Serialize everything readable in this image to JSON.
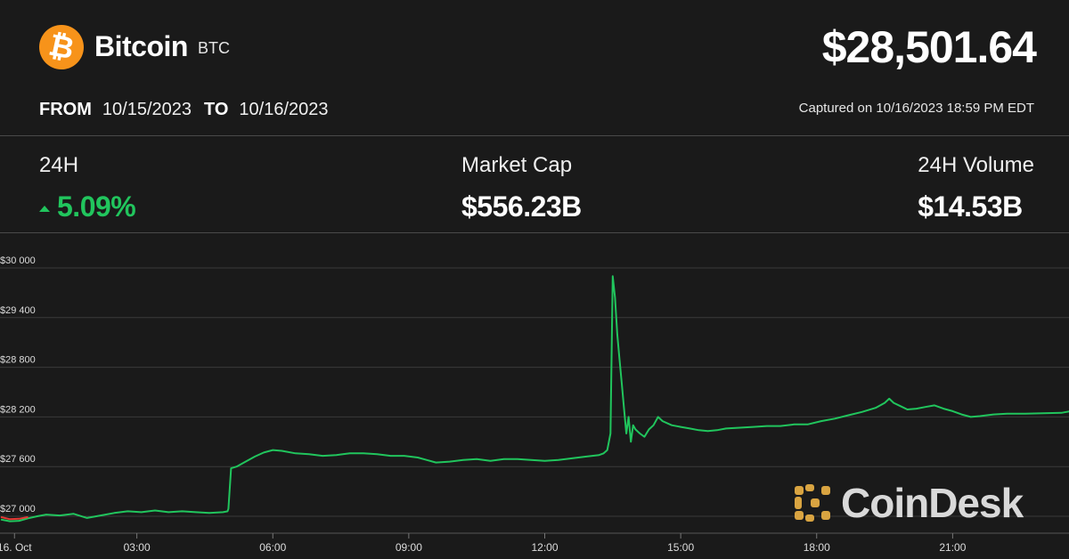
{
  "header": {
    "coin_name": "Bitcoin",
    "coin_symbol": "BTC",
    "logo_glyph": "₿",
    "price": "$28,501.64",
    "from_label": "FROM",
    "from_date": "10/15/2023",
    "to_label": "TO",
    "to_date": "10/16/2023",
    "captured": "Captured on 10/16/2023 18:59 PM EDT"
  },
  "stats": {
    "change_label": "24H",
    "change_value": "5.09%",
    "market_cap_label": "Market Cap",
    "market_cap_value": "$556.23B",
    "volume_label": "24H Volume",
    "volume_value": "$14.53B"
  },
  "watermark": {
    "text": "CoinDesk"
  },
  "colors": {
    "background": "#1a1a1a",
    "up": "#21c55d",
    "down": "#e53935",
    "brand": "#f7931a",
    "watermark": "#d9a441",
    "grid": "#3a3a3a"
  },
  "chart_data": {
    "type": "line",
    "title": "",
    "xlabel": "",
    "ylabel": "",
    "ylim": [
      26900,
      30200
    ],
    "xlim": [
      0,
      23.7
    ],
    "yticks": [
      {
        "value": 27000,
        "label": "$27 000"
      },
      {
        "value": 27600,
        "label": "$27 600"
      },
      {
        "value": 28200,
        "label": "$28 200"
      },
      {
        "value": 28800,
        "label": "$28 800"
      },
      {
        "value": 29400,
        "label": "$29 400"
      },
      {
        "value": 30000,
        "label": "$30 000"
      }
    ],
    "xticks": [
      {
        "value": 0.3,
        "label": "16. Oct"
      },
      {
        "value": 3,
        "label": "03:00"
      },
      {
        "value": 6,
        "label": "06:00"
      },
      {
        "value": 9,
        "label": "09:00"
      },
      {
        "value": 12,
        "label": "12:00"
      },
      {
        "value": 15,
        "label": "15:00"
      },
      {
        "value": 18,
        "label": "18:00"
      },
      {
        "value": 21,
        "label": "21:00"
      }
    ],
    "grid": true,
    "series": [
      {
        "color": "#21c55d",
        "x_unit": "hours since 16 Oct 00:00",
        "points": [
          [
            0.0,
            26960
          ],
          [
            0.2,
            26940
          ],
          [
            0.4,
            26945
          ],
          [
            0.6,
            26975
          ],
          [
            0.8,
            27000
          ],
          [
            1.0,
            27020
          ],
          [
            1.3,
            27010
          ],
          [
            1.6,
            27030
          ],
          [
            1.9,
            26980
          ],
          [
            2.2,
            27010
          ],
          [
            2.5,
            27040
          ],
          [
            2.8,
            27060
          ],
          [
            3.1,
            27050
          ],
          [
            3.4,
            27070
          ],
          [
            3.7,
            27050
          ],
          [
            4.0,
            27060
          ],
          [
            4.3,
            27050
          ],
          [
            4.6,
            27040
          ],
          [
            4.9,
            27050
          ],
          [
            5.0,
            27060
          ],
          [
            5.02,
            27090
          ],
          [
            5.08,
            27580
          ],
          [
            5.2,
            27600
          ],
          [
            5.4,
            27660
          ],
          [
            5.6,
            27720
          ],
          [
            5.8,
            27770
          ],
          [
            6.0,
            27800
          ],
          [
            6.2,
            27790
          ],
          [
            6.5,
            27760
          ],
          [
            6.8,
            27750
          ],
          [
            7.1,
            27730
          ],
          [
            7.4,
            27740
          ],
          [
            7.7,
            27760
          ],
          [
            8.0,
            27760
          ],
          [
            8.3,
            27750
          ],
          [
            8.6,
            27730
          ],
          [
            8.9,
            27730
          ],
          [
            9.2,
            27710
          ],
          [
            9.4,
            27680
          ],
          [
            9.6,
            27650
          ],
          [
            9.9,
            27660
          ],
          [
            10.2,
            27680
          ],
          [
            10.5,
            27690
          ],
          [
            10.8,
            27670
          ],
          [
            11.1,
            27690
          ],
          [
            11.4,
            27690
          ],
          [
            11.7,
            27680
          ],
          [
            12.0,
            27670
          ],
          [
            12.3,
            27680
          ],
          [
            12.6,
            27700
          ],
          [
            12.9,
            27720
          ],
          [
            13.2,
            27740
          ],
          [
            13.3,
            27760
          ],
          [
            13.38,
            27800
          ],
          [
            13.45,
            28000
          ],
          [
            13.5,
            29900
          ],
          [
            13.55,
            29640
          ],
          [
            13.6,
            29200
          ],
          [
            13.65,
            28900
          ],
          [
            13.7,
            28600
          ],
          [
            13.75,
            28300
          ],
          [
            13.8,
            28000
          ],
          [
            13.85,
            28200
          ],
          [
            13.9,
            27900
          ],
          [
            13.95,
            28100
          ],
          [
            14.0,
            28050
          ],
          [
            14.1,
            28000
          ],
          [
            14.2,
            27960
          ],
          [
            14.3,
            28050
          ],
          [
            14.4,
            28100
          ],
          [
            14.5,
            28200
          ],
          [
            14.6,
            28150
          ],
          [
            14.8,
            28100
          ],
          [
            15.0,
            28080
          ],
          [
            15.2,
            28060
          ],
          [
            15.4,
            28040
          ],
          [
            15.6,
            28030
          ],
          [
            15.8,
            28040
          ],
          [
            16.0,
            28060
          ],
          [
            16.3,
            28070
          ],
          [
            16.6,
            28080
          ],
          [
            16.9,
            28090
          ],
          [
            17.2,
            28090
          ],
          [
            17.5,
            28110
          ],
          [
            17.8,
            28110
          ],
          [
            18.1,
            28150
          ],
          [
            18.4,
            28180
          ],
          [
            18.7,
            28220
          ],
          [
            19.0,
            28260
          ],
          [
            19.3,
            28310
          ],
          [
            19.5,
            28370
          ],
          [
            19.6,
            28420
          ],
          [
            19.7,
            28370
          ],
          [
            19.85,
            28330
          ],
          [
            20.0,
            28290
          ],
          [
            20.2,
            28300
          ],
          [
            20.4,
            28320
          ],
          [
            20.6,
            28340
          ],
          [
            20.8,
            28300
          ],
          [
            21.0,
            28270
          ],
          [
            21.2,
            28230
          ],
          [
            21.4,
            28200
          ],
          [
            21.6,
            28210
          ],
          [
            21.9,
            28230
          ],
          [
            22.2,
            28240
          ],
          [
            22.6,
            28240
          ],
          [
            23.0,
            28245
          ],
          [
            23.4,
            28250
          ],
          [
            23.7,
            28280
          ]
        ]
      }
    ],
    "start_segment": {
      "color": "#e53935",
      "points": [
        [
          0.0,
          26990
        ],
        [
          0.2,
          26965
        ],
        [
          0.4,
          26970
        ],
        [
          0.6,
          26990
        ]
      ]
    }
  }
}
